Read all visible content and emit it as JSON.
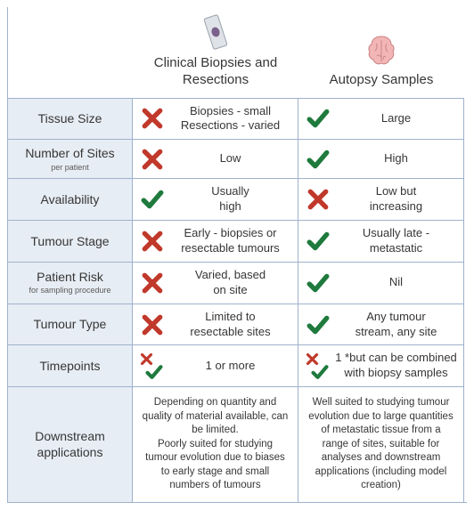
{
  "colors": {
    "check": "#1f7a3d",
    "cross": "#c0392b",
    "border": "#9fb1cc",
    "label_bg": "#e7edf4",
    "text": "#363636",
    "brain_fill": "#f2b6b6",
    "brain_stroke": "#c98181",
    "slide_fill": "#dfe3e8",
    "slide_stroke": "#9aa3ad",
    "slide_spot": "#6a4a7a"
  },
  "fontsizes": {
    "header": 15,
    "label": 14,
    "body": 13,
    "sub": 9,
    "downstream": 11.5
  },
  "headers": {
    "col1": "Clinical Biopsies and Resections",
    "col2": "Autopsy Samples"
  },
  "rows": [
    {
      "label": "Tissue Size",
      "sub": "",
      "c1_icon": "cross",
      "c1_text": "Biopsies - small\nResections - varied",
      "c2_icon": "check",
      "c2_text": "Large"
    },
    {
      "label": "Number of Sites",
      "sub": "per patient",
      "c1_icon": "cross",
      "c1_text": "Low",
      "c2_icon": "check",
      "c2_text": "High"
    },
    {
      "label": "Availability",
      "sub": "",
      "c1_icon": "check",
      "c1_text": "Usually\nhigh",
      "c2_icon": "cross",
      "c2_text": "Low but\nincreasing"
    },
    {
      "label": "Tumour Stage",
      "sub": "",
      "c1_icon": "cross",
      "c1_text": "Early - biopsies or\nresectable tumours",
      "c2_icon": "check",
      "c2_text": "Usually late -\nmetastatic"
    },
    {
      "label": "Patient Risk",
      "sub": "for sampling procedure",
      "c1_icon": "cross",
      "c1_text": "Varied, based\non site",
      "c2_icon": "check",
      "c2_text": "Nil"
    },
    {
      "label": "Tumour Type",
      "sub": "",
      "c1_icon": "cross",
      "c1_text": "Limited to\nresectable sites",
      "c2_icon": "check",
      "c2_text": "Any tumour\nstream, any site"
    },
    {
      "label": "Timepoints",
      "sub": "",
      "c1_icon": "both",
      "c1_text": "1 or more",
      "c2_icon": "both",
      "c2_text": "1 *but can be combined\nwith biopsy samples"
    }
  ],
  "downstream": {
    "label": "Downstream applications",
    "c1": "Depending on quantity and quality of material available, can be limited.\nPoorly suited for studying tumour evolution due to biases to early stage and small numbers of tumours",
    "c2": "Well suited to studying tumour evolution due to large quantities of metastatic tissue from a range of sites, suitable for analyses and downstream applications (including model creation)"
  }
}
